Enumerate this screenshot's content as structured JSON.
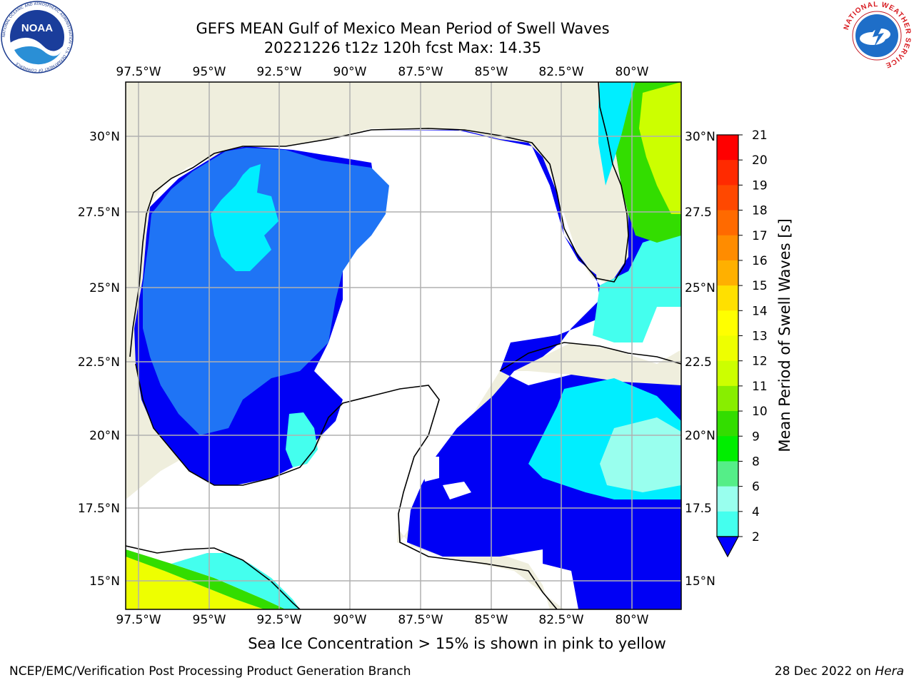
{
  "header": {
    "title_line1": "GEFS MEAN Gulf of Mexico Mean Period of Swell Waves",
    "title_line2": "20221226 t12z 120h fcst   Max: 14.35"
  },
  "logos": {
    "noaa_text": "NOAA",
    "noaa_ring": "NATIONAL OCEANIC AND ATMOSPHERIC ADMINISTRATION · U.S. DEPARTMENT OF COMMERCE",
    "nws_ring": "NATIONAL WEATHER SERVICE"
  },
  "map": {
    "lon_labels": [
      "97.5°W",
      "95°W",
      "92.5°W",
      "90°W",
      "87.5°W",
      "85°W",
      "82.5°W",
      "80°W"
    ],
    "lat_labels_left": [
      "30°N",
      "27.5°N",
      "25°N",
      "22.5°N",
      "20°N",
      "17.5°N",
      "15°N"
    ],
    "lat_labels_right": [
      "30°N",
      "27.5",
      "25°N",
      "22.5",
      "20°N",
      "17.5",
      "15°N"
    ],
    "land_color": "#efeedd",
    "grid_color": "#b0b0b0"
  },
  "colorbar": {
    "label": "Mean Period of Swell Waves [s]",
    "ticks": [
      "21",
      "20",
      "19",
      "18",
      "17",
      "16",
      "15",
      "14",
      "13",
      "12",
      "11",
      "10",
      "9",
      "8",
      "6",
      "4",
      "2"
    ],
    "colors": [
      "#ff0000",
      "#ff2a00",
      "#ff4800",
      "#ff6a00",
      "#ff8c00",
      "#ffb000",
      "#ffe000",
      "#ffff00",
      "#eeff00",
      "#ccff00",
      "#88ee00",
      "#33dd00",
      "#00ee00",
      "#55ee88",
      "#99ffee",
      "#44ffee",
      "#00eeff",
      "#0088ff"
    ],
    "underflow_color": "#0000ff"
  },
  "footnote": "Sea Ice Concentration > 15% is shown in pink to yellow",
  "footer": {
    "left": "NCEP/EMC/Verification Post Processing Product Generation Branch",
    "right_date": "28 Dec 2022 on ",
    "right_host": "Hera"
  }
}
